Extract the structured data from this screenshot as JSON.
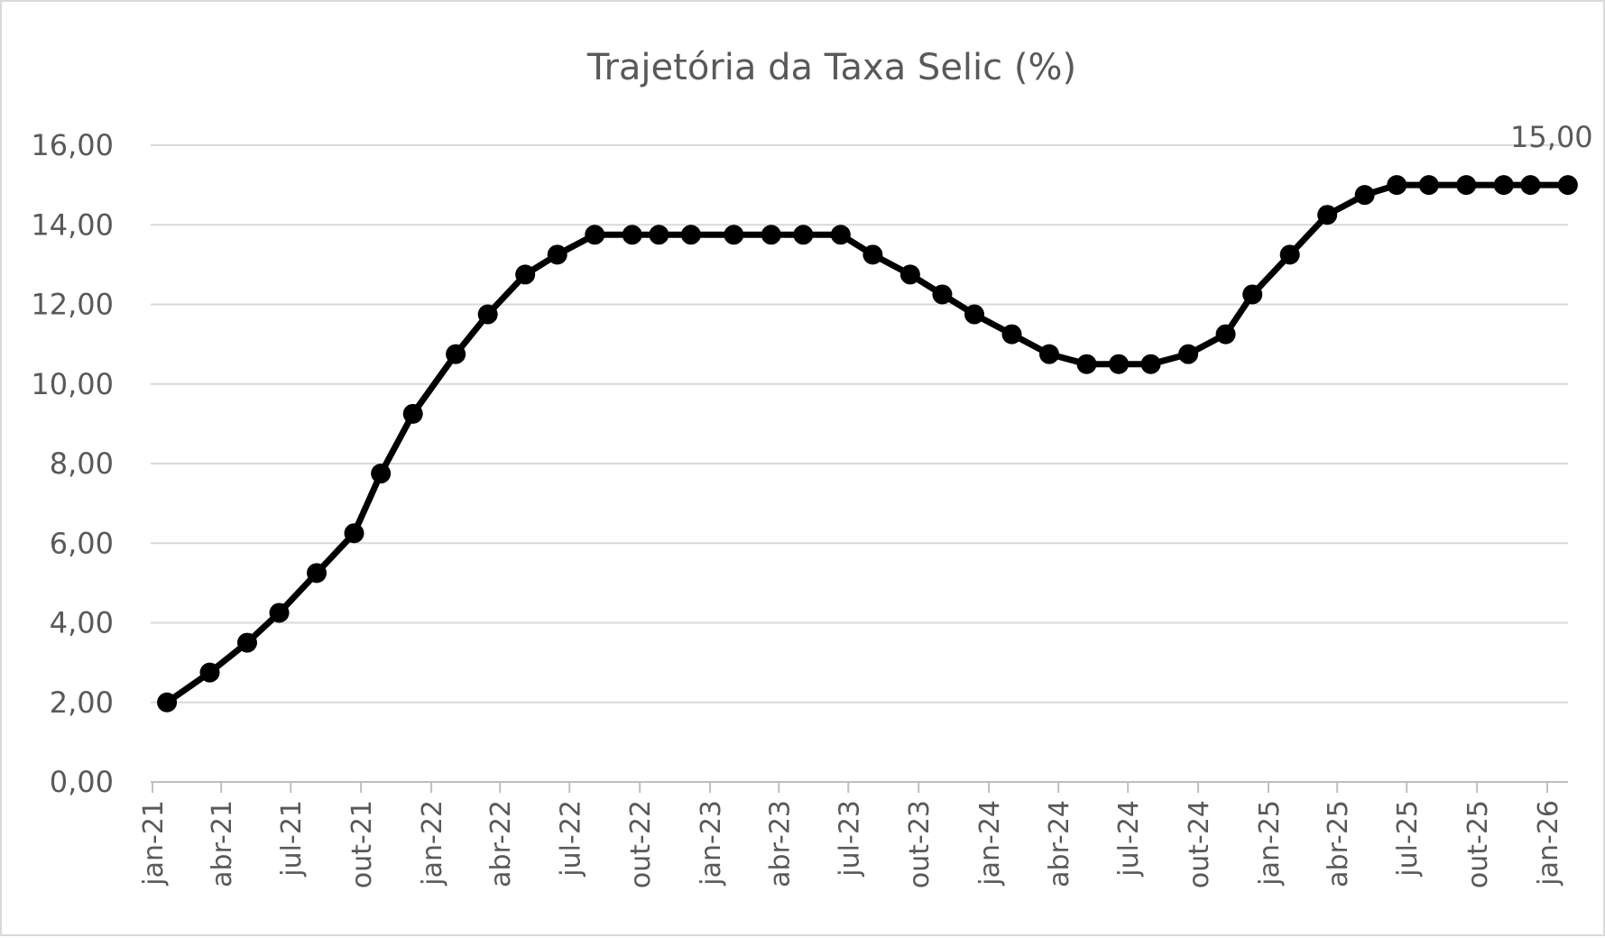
{
  "chart_data": {
    "type": "line",
    "title": "Trajetória da Taxa Selic (%)",
    "xlabel": "",
    "ylabel": "",
    "ylim": [
      0,
      16
    ],
    "yticks": [
      "0,00",
      "2,00",
      "4,00",
      "6,00",
      "8,00",
      "10,00",
      "12,00",
      "14,00",
      "16,00"
    ],
    "xlim": [
      "2021-01-01",
      "2026-01-01"
    ],
    "xticks": [
      {
        "date": "2021-01-01",
        "label": "jan-21"
      },
      {
        "date": "2021-04-01",
        "label": "abr-21"
      },
      {
        "date": "2021-07-01",
        "label": "jul-21"
      },
      {
        "date": "2021-10-01",
        "label": "out-21"
      },
      {
        "date": "2022-01-01",
        "label": "jan-22"
      },
      {
        "date": "2022-04-01",
        "label": "abr-22"
      },
      {
        "date": "2022-07-01",
        "label": "jul-22"
      },
      {
        "date": "2022-10-01",
        "label": "out-22"
      },
      {
        "date": "2023-01-01",
        "label": "jan-23"
      },
      {
        "date": "2023-04-01",
        "label": "abr-23"
      },
      {
        "date": "2023-07-01",
        "label": "jul-23"
      },
      {
        "date": "2023-10-01",
        "label": "out-23"
      },
      {
        "date": "2024-01-01",
        "label": "jan-24"
      },
      {
        "date": "2024-04-01",
        "label": "abr-24"
      },
      {
        "date": "2024-07-01",
        "label": "jul-24"
      },
      {
        "date": "2024-10-01",
        "label": "out-24"
      },
      {
        "date": "2025-01-01",
        "label": "jan-25"
      },
      {
        "date": "2025-04-01",
        "label": "abr-25"
      },
      {
        "date": "2025-07-01",
        "label": "jul-25"
      },
      {
        "date": "2025-10-01",
        "label": "out-25"
      },
      {
        "date": "2026-01-01",
        "label": "jan-26"
      }
    ],
    "grid": true,
    "line_color": "#000000",
    "points": [
      [
        "2021-01-20",
        2.0
      ],
      [
        "2021-03-17",
        2.75
      ],
      [
        "2021-05-05",
        3.5
      ],
      [
        "2021-06-16",
        4.25
      ],
      [
        "2021-08-04",
        5.25
      ],
      [
        "2021-09-22",
        6.25
      ],
      [
        "2021-10-27",
        7.75
      ],
      [
        "2021-12-08",
        9.25
      ],
      [
        "2022-02-02",
        10.75
      ],
      [
        "2022-03-16",
        11.75
      ],
      [
        "2022-05-04",
        12.75
      ],
      [
        "2022-06-15",
        13.25
      ],
      [
        "2022-08-03",
        13.75
      ],
      [
        "2022-09-21",
        13.75
      ],
      [
        "2022-10-26",
        13.75
      ],
      [
        "2022-12-07",
        13.75
      ],
      [
        "2023-02-01",
        13.75
      ],
      [
        "2023-03-22",
        13.75
      ],
      [
        "2023-05-03",
        13.75
      ],
      [
        "2023-06-21",
        13.75
      ],
      [
        "2023-08-02",
        13.25
      ],
      [
        "2023-09-20",
        12.75
      ],
      [
        "2023-11-01",
        12.25
      ],
      [
        "2023-12-13",
        11.75
      ],
      [
        "2024-01-31",
        11.25
      ],
      [
        "2024-03-20",
        10.75
      ],
      [
        "2024-05-08",
        10.5
      ],
      [
        "2024-06-19",
        10.5
      ],
      [
        "2024-07-31",
        10.5
      ],
      [
        "2024-09-18",
        10.75
      ],
      [
        "2024-11-06",
        11.25
      ],
      [
        "2024-12-11",
        12.25
      ],
      [
        "2025-01-29",
        13.25
      ],
      [
        "2025-03-19",
        14.25
      ],
      [
        "2025-05-07",
        14.75
      ],
      [
        "2025-06-18",
        15.0
      ],
      [
        "2025-07-30",
        15.0
      ],
      [
        "2025-09-17",
        15.0
      ],
      [
        "2025-11-05",
        15.0
      ],
      [
        "2025-12-10",
        15.0
      ],
      [
        "2026-01-28",
        15.0
      ]
    ],
    "annotation": "15,00"
  }
}
